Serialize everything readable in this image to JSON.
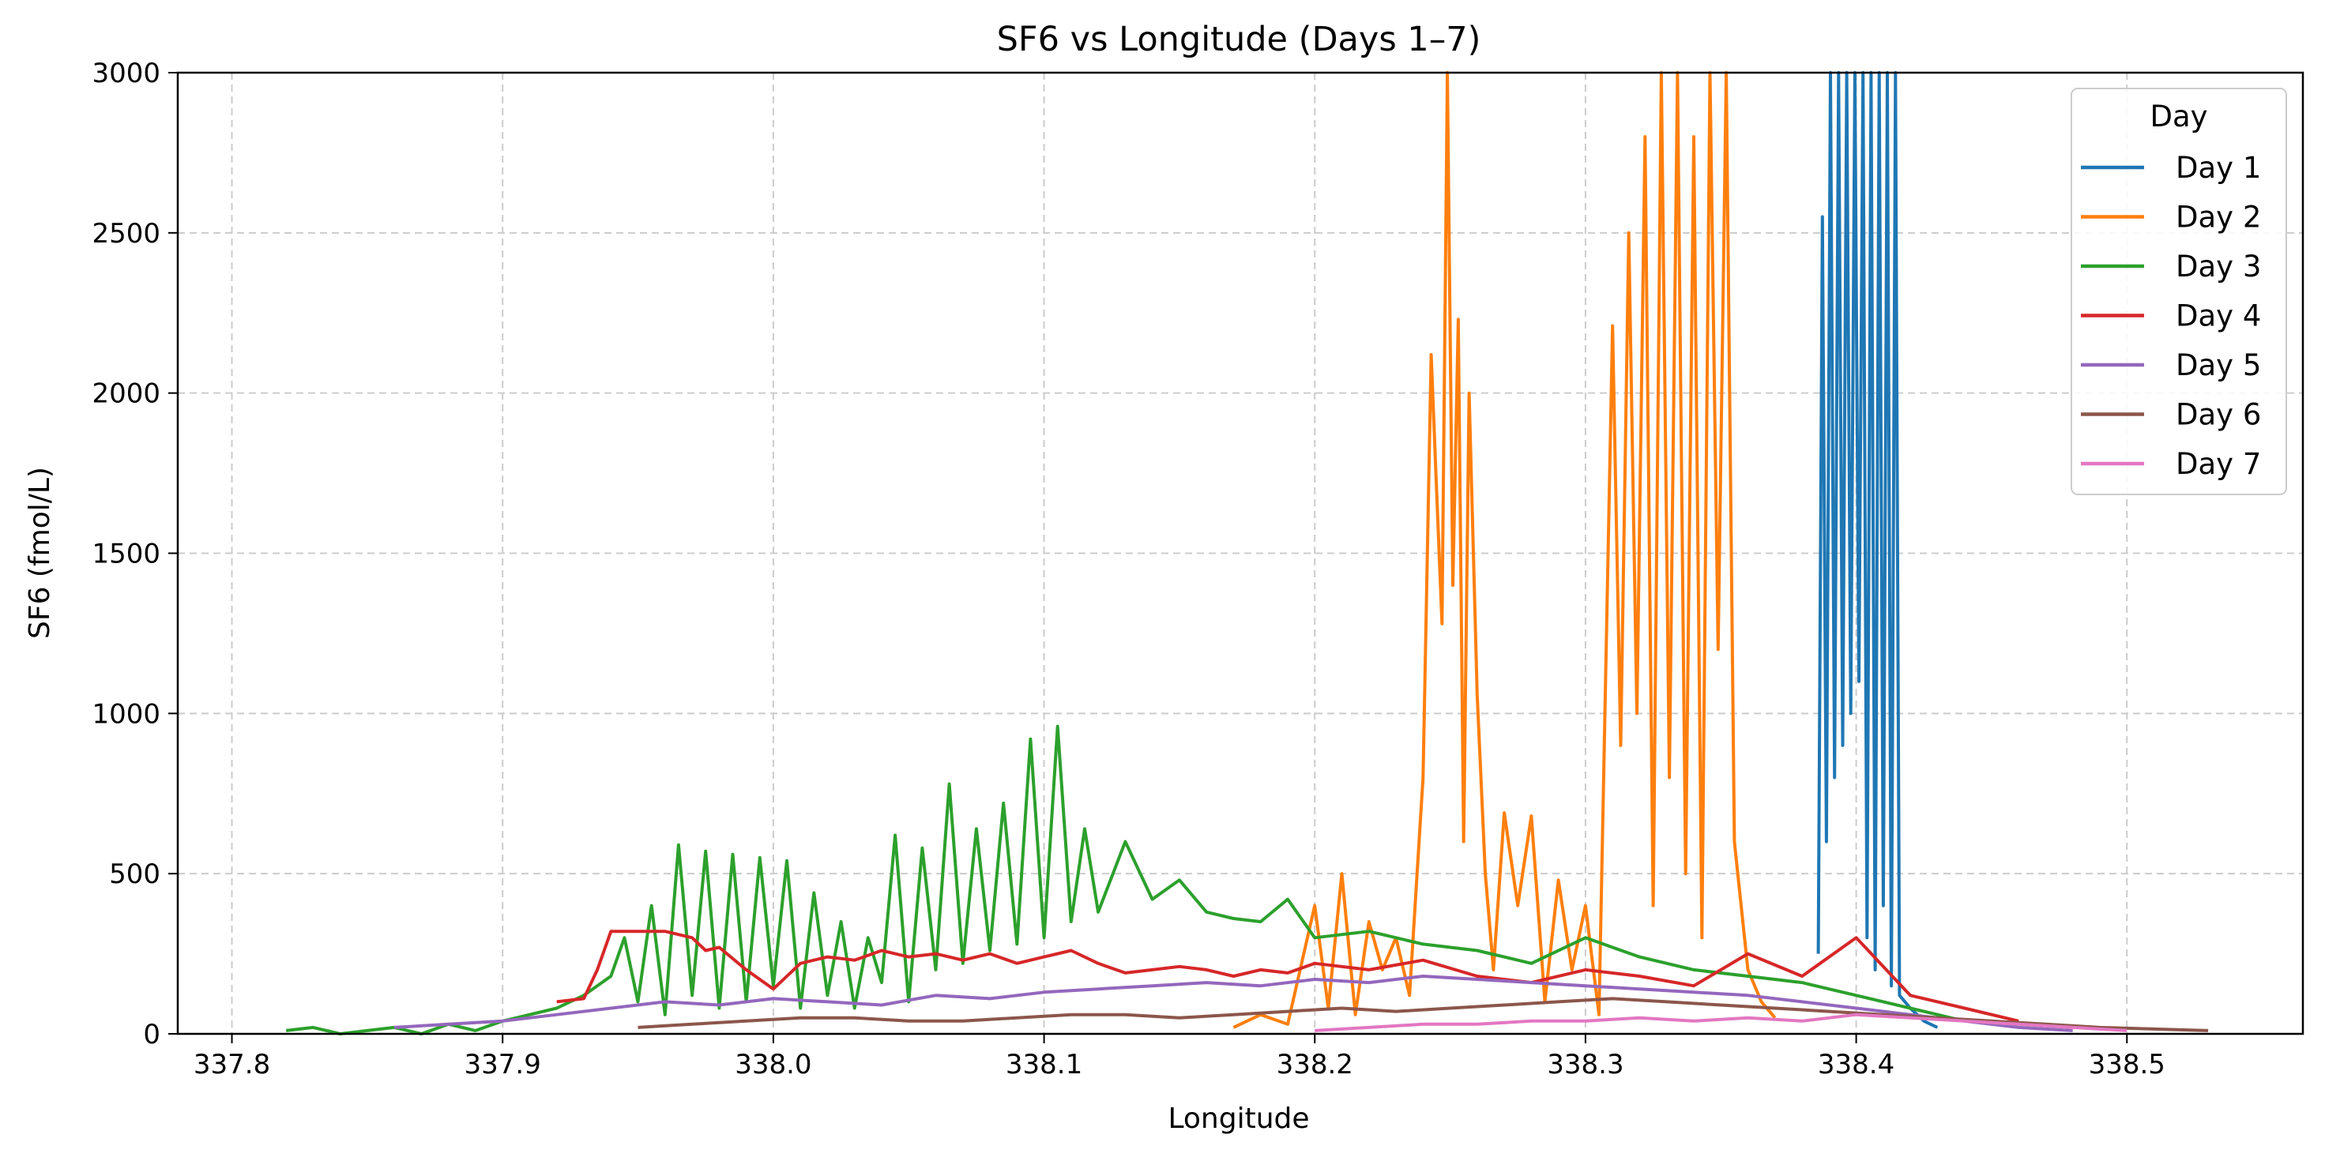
{
  "chart_data": {
    "type": "line",
    "title": "SF6 vs Longitude (Days 1–7)",
    "xlabel": "Longitude",
    "ylabel": "SF6 (fmol/L)",
    "xlim": [
      337.78,
      338.565
    ],
    "ylim": [
      0,
      3000
    ],
    "xticks": [
      337.8,
      337.9,
      338.0,
      338.1,
      338.2,
      338.3,
      338.4,
      338.5
    ],
    "xtick_labels": [
      "337.8",
      "337.9",
      "338.0",
      "338.1",
      "338.2",
      "338.3",
      "338.4",
      "338.5"
    ],
    "yticks": [
      0,
      500,
      1000,
      1500,
      2000,
      2500,
      3000
    ],
    "ytick_labels": [
      "0",
      "500",
      "1000",
      "1500",
      "2000",
      "2500",
      "3000"
    ],
    "grid": true,
    "legend": {
      "title": "Day",
      "position": "top-right"
    },
    "series": [
      {
        "name": "Day 1",
        "color": "#1f77b4",
        "x": [
          338.386,
          338.3875,
          338.389,
          338.3905,
          338.392,
          338.3935,
          338.395,
          338.3965,
          338.398,
          338.3995,
          338.401,
          338.4025,
          338.404,
          338.4055,
          338.407,
          338.4085,
          338.41,
          338.4115,
          338.413,
          338.4145,
          338.416,
          338.42,
          338.425,
          338.43
        ],
        "y": [
          250,
          2550,
          600,
          3000,
          800,
          3000,
          900,
          3000,
          1000,
          3000,
          1100,
          3000,
          300,
          3000,
          200,
          3000,
          400,
          3000,
          150,
          3000,
          120,
          80,
          40,
          20
        ]
      },
      {
        "name": "Day 2",
        "color": "#ff7f0e",
        "x": [
          338.17,
          338.18,
          338.19,
          338.2,
          338.205,
          338.21,
          338.215,
          338.22,
          338.225,
          338.23,
          338.235,
          338.24,
          338.243,
          338.245,
          338.247,
          338.249,
          338.251,
          338.253,
          338.255,
          338.257,
          338.26,
          338.263,
          338.266,
          338.27,
          338.275,
          338.28,
          338.285,
          338.29,
          338.295,
          338.3,
          338.305,
          338.31,
          338.313,
          338.316,
          338.319,
          338.322,
          338.325,
          338.328,
          338.331,
          338.334,
          338.337,
          338.34,
          338.343,
          338.346,
          338.349,
          338.352,
          338.355,
          338.36,
          338.365,
          338.37
        ],
        "y": [
          20,
          60,
          30,
          400,
          80,
          500,
          60,
          350,
          200,
          300,
          120,
          800,
          2120,
          1700,
          1280,
          3000,
          1400,
          2230,
          600,
          2000,
          1060,
          500,
          200,
          690,
          400,
          680,
          100,
          480,
          200,
          400,
          60,
          2210,
          900,
          2500,
          1000,
          2800,
          400,
          3000,
          800,
          3000,
          500,
          2800,
          300,
          3000,
          1200,
          3000,
          600,
          200,
          100,
          50
        ]
      },
      {
        "name": "Day 3",
        "color": "#2ca02c",
        "x": [
          337.82,
          337.83,
          337.84,
          337.85,
          337.86,
          337.87,
          337.88,
          337.89,
          337.9,
          337.91,
          337.92,
          337.93,
          337.94,
          337.945,
          337.95,
          337.955,
          337.96,
          337.965,
          337.97,
          337.975,
          337.98,
          337.985,
          337.99,
          337.995,
          338.0,
          338.005,
          338.01,
          338.015,
          338.02,
          338.025,
          338.03,
          338.035,
          338.04,
          338.045,
          338.05,
          338.055,
          338.06,
          338.065,
          338.07,
          338.075,
          338.08,
          338.085,
          338.09,
          338.095,
          338.1,
          338.105,
          338.11,
          338.115,
          338.12,
          338.13,
          338.14,
          338.15,
          338.16,
          338.17,
          338.18,
          338.19,
          338.2,
          338.22,
          338.24,
          338.26,
          338.28,
          338.3,
          338.32,
          338.34,
          338.36,
          338.38,
          338.4,
          338.42,
          338.44
        ],
        "y": [
          10,
          20,
          0,
          10,
          20,
          0,
          30,
          10,
          40,
          60,
          80,
          120,
          180,
          300,
          100,
          400,
          60,
          590,
          120,
          570,
          80,
          560,
          100,
          550,
          150,
          540,
          80,
          440,
          120,
          350,
          80,
          300,
          160,
          620,
          100,
          580,
          200,
          780,
          220,
          640,
          260,
          720,
          280,
          920,
          300,
          960,
          350,
          640,
          380,
          600,
          420,
          480,
          380,
          360,
          350,
          420,
          300,
          320,
          280,
          260,
          220,
          300,
          240,
          200,
          180,
          160,
          120,
          80,
          40
        ]
      },
      {
        "name": "Day 4",
        "color": "#d62728",
        "x": [
          337.92,
          337.93,
          337.935,
          337.94,
          337.96,
          337.97,
          337.975,
          337.98,
          337.99,
          338.0,
          338.01,
          338.02,
          338.03,
          338.04,
          338.05,
          338.06,
          338.07,
          338.08,
          338.09,
          338.1,
          338.11,
          338.12,
          338.13,
          338.14,
          338.15,
          338.16,
          338.17,
          338.18,
          338.19,
          338.2,
          338.22,
          338.24,
          338.26,
          338.28,
          338.3,
          338.32,
          338.34,
          338.36,
          338.38,
          338.4,
          338.42,
          338.44,
          338.46
        ],
        "y": [
          100,
          110,
          200,
          320,
          320,
          300,
          260,
          270,
          200,
          140,
          220,
          240,
          230,
          260,
          240,
          250,
          230,
          250,
          220,
          240,
          260,
          220,
          190,
          200,
          210,
          200,
          180,
          200,
          190,
          220,
          200,
          230,
          180,
          160,
          200,
          180,
          150,
          250,
          180,
          300,
          120,
          80,
          40
        ]
      },
      {
        "name": "Day 5",
        "color": "#9467bd",
        "x": [
          337.86,
          337.88,
          337.9,
          337.92,
          337.94,
          337.96,
          337.98,
          338.0,
          338.02,
          338.04,
          338.06,
          338.08,
          338.1,
          338.12,
          338.14,
          338.16,
          338.18,
          338.2,
          338.22,
          338.24,
          338.26,
          338.28,
          338.3,
          338.32,
          338.34,
          338.36,
          338.38,
          338.4,
          338.42,
          338.44,
          338.46,
          338.48
        ],
        "y": [
          20,
          30,
          40,
          60,
          80,
          100,
          90,
          110,
          100,
          90,
          120,
          110,
          130,
          140,
          150,
          160,
          150,
          170,
          160,
          180,
          170,
          160,
          150,
          140,
          130,
          120,
          100,
          80,
          60,
          40,
          20,
          10
        ]
      },
      {
        "name": "Day 6",
        "color": "#8c564b",
        "x": [
          337.95,
          337.97,
          337.99,
          338.01,
          338.03,
          338.05,
          338.07,
          338.09,
          338.11,
          338.13,
          338.15,
          338.17,
          338.19,
          338.21,
          338.23,
          338.25,
          338.27,
          338.29,
          338.31,
          338.33,
          338.35,
          338.37,
          338.39,
          338.41,
          338.43,
          338.45,
          338.47,
          338.49,
          338.51,
          338.53
        ],
        "y": [
          20,
          30,
          40,
          50,
          50,
          40,
          40,
          50,
          60,
          60,
          50,
          60,
          70,
          80,
          70,
          80,
          90,
          100,
          110,
          100,
          90,
          80,
          70,
          60,
          50,
          40,
          30,
          20,
          15,
          10
        ]
      },
      {
        "name": "Day 7",
        "color": "#e377c2",
        "x": [
          338.2,
          338.22,
          338.24,
          338.26,
          338.28,
          338.3,
          338.32,
          338.34,
          338.36,
          338.38,
          338.4,
          338.42,
          338.44,
          338.46,
          338.48,
          338.5
        ],
        "y": [
          10,
          20,
          30,
          30,
          40,
          40,
          50,
          40,
          50,
          40,
          60,
          50,
          40,
          30,
          20,
          10
        ]
      }
    ]
  }
}
